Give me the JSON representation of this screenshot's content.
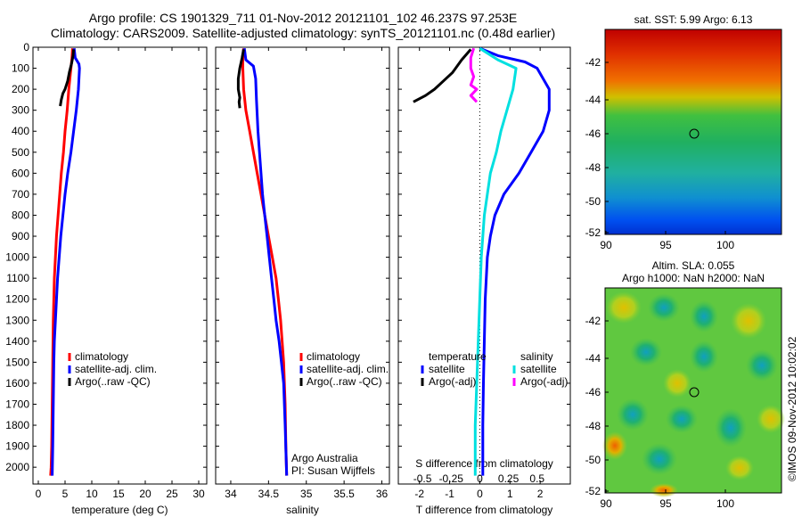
{
  "header": {
    "line1": "Argo profile: CS 1901329_711 01-Nov-2012 20121101_102 46.237S 97.253E",
    "line2": "Climatology: CARS2009. Satellite-adjusted climatology: synTS_20121101.nc (0.48d earlier)"
  },
  "colors": {
    "clim": "#ff0000",
    "sat": "#0000ff",
    "argo": "#000000",
    "sal_sat": "#00e0e0",
    "sal_argo": "#ff00ff"
  },
  "depth_ticks": [
    "0",
    "100",
    "200",
    "300",
    "400",
    "500",
    "600",
    "700",
    "800",
    "900",
    "1000",
    "1100",
    "1200",
    "1300",
    "1400",
    "1500",
    "1600",
    "1700",
    "1800",
    "1900",
    "2000"
  ],
  "chart_data": [
    {
      "type": "line",
      "xlabel": "temperature (deg C)",
      "xticks": [
        "0",
        "5",
        "10",
        "15",
        "20",
        "25",
        "30"
      ],
      "xlim": [
        -1,
        31.5
      ],
      "ylim": [
        2080,
        0
      ],
      "legend": [
        "climatology",
        "satellite-adj. clim.",
        "Argo(..raw -QC)"
      ],
      "series": [
        {
          "name": "climatology",
          "color": "#ff0000",
          "x": [
            6.4,
            6.3,
            6.1,
            5.7,
            5.4,
            5.0,
            4.7,
            4.3,
            4.0,
            3.7,
            3.4,
            3.2,
            3.0,
            2.9,
            2.8,
            2.7,
            2.6,
            2.5,
            2.4,
            2.3
          ],
          "y": [
            5,
            50,
            100,
            200,
            300,
            400,
            500,
            600,
            700,
            800,
            900,
            1000,
            1100,
            1200,
            1300,
            1500,
            1700,
            1900,
            2000,
            2040
          ]
        },
        {
          "name": "satellite-adj. clim.",
          "color": "#0000ff",
          "x": [
            6.7,
            6.9,
            7.6,
            7.7,
            7.5,
            7.1,
            6.6,
            6.1,
            5.5,
            5.0,
            4.6,
            4.2,
            3.9,
            3.6,
            3.4,
            3.2,
            3.0,
            2.9,
            2.8,
            2.7,
            2.6
          ],
          "y": [
            5,
            50,
            80,
            100,
            200,
            300,
            400,
            500,
            600,
            700,
            800,
            900,
            1000,
            1100,
            1200,
            1300,
            1400,
            1500,
            1700,
            1900,
            2040
          ]
        },
        {
          "name": "Argo(..raw -QC)",
          "color": "#000000",
          "x": [
            6.6,
            6.5,
            6.2,
            5.8,
            5.5,
            5.0,
            4.6,
            4.3,
            4.1
          ],
          "y": [
            10,
            40,
            80,
            120,
            160,
            200,
            220,
            250,
            280
          ]
        }
      ]
    },
    {
      "type": "line",
      "xlabel": "salinity",
      "xticks": [
        "34",
        "34.5",
        "35",
        "35.5",
        "36"
      ],
      "xlim": [
        33.8,
        36.1
      ],
      "ylim": [
        2080,
        0
      ],
      "legend": [
        "climatology",
        "satellite-adj. clim.",
        "Argo(..raw -QC)"
      ],
      "series": [
        {
          "name": "climatology",
          "color": "#ff0000",
          "x": [
            34.17,
            34.16,
            34.16,
            34.17,
            34.2,
            34.25,
            34.3,
            34.35,
            34.4,
            34.45,
            34.5,
            34.55,
            34.6,
            34.63,
            34.66,
            34.68,
            34.7,
            34.72,
            34.73,
            34.74
          ],
          "y": [
            5,
            50,
            100,
            200,
            300,
            400,
            500,
            600,
            700,
            800,
            900,
            1000,
            1100,
            1200,
            1300,
            1400,
            1500,
            1700,
            1900,
            2040
          ]
        },
        {
          "name": "satellite-adj. clim.",
          "color": "#0000ff",
          "x": [
            34.18,
            34.2,
            34.3,
            34.33,
            34.34,
            34.36,
            34.38,
            34.4,
            34.42,
            34.45,
            34.48,
            34.51,
            34.54,
            34.57,
            34.6,
            34.64,
            34.67,
            34.7,
            34.72,
            34.74
          ],
          "y": [
            5,
            60,
            90,
            150,
            250,
            400,
            500,
            600,
            700,
            800,
            900,
            1000,
            1100,
            1200,
            1300,
            1400,
            1500,
            1600,
            1800,
            2040
          ]
        },
        {
          "name": "Argo(..raw -QC)",
          "color": "#000000",
          "x": [
            34.17,
            34.15,
            34.12,
            34.1,
            34.1,
            34.12,
            34.11,
            34.12
          ],
          "y": [
            10,
            50,
            100,
            150,
            200,
            240,
            260,
            290
          ]
        }
      ]
    },
    {
      "type": "line",
      "xlabel": "T difference from climatology",
      "xlabel2": "S difference from climatology",
      "xticks": [
        "-2",
        "-1",
        "0",
        "1",
        "2"
      ],
      "xticks_s": [
        "-0.5",
        "-0.25",
        "0",
        "0.25",
        "0.5"
      ],
      "xlim": [
        -2.7,
        3.0
      ],
      "ylim": [
        2080,
        0
      ],
      "legend_title_t": "temperature",
      "legend_title_s": "salinity",
      "legend": [
        "satellite",
        "Argo(-adj)",
        "satellite",
        "Argo(-adj)"
      ],
      "series": [
        {
          "name": "satellite",
          "group": "temperature",
          "color": "#0000ff",
          "x": [
            0.0,
            0.6,
            1.5,
            1.9,
            2.3,
            2.3,
            2.1,
            1.7,
            1.3,
            0.8,
            0.5,
            0.35,
            0.25,
            0.18,
            0.15,
            0.12,
            0.1,
            0.1
          ],
          "y": [
            5,
            40,
            70,
            100,
            200,
            300,
            400,
            500,
            600,
            700,
            800,
            900,
            1000,
            1200,
            1400,
            1600,
            1800,
            2040
          ]
        },
        {
          "name": "Argo(-adj)",
          "group": "temperature",
          "color": "#000000",
          "x": [
            -0.3,
            -0.6,
            -0.9,
            -1.2,
            -1.5,
            -1.8,
            -2.2
          ],
          "y": [
            10,
            60,
            120,
            160,
            200,
            230,
            260
          ]
        },
        {
          "name": "satellite",
          "group": "salinity",
          "color": "#00e0e0",
          "x": [
            0.0,
            0.6,
            1.2,
            1.1,
            0.9,
            0.7,
            0.55,
            0.35,
            0.25,
            0.15,
            0.05,
            0.0,
            -0.05,
            -0.1,
            -0.15,
            -0.15
          ],
          "y": [
            5,
            60,
            100,
            200,
            300,
            400,
            500,
            600,
            700,
            800,
            1000,
            1200,
            1400,
            1600,
            1800,
            2040
          ]
        },
        {
          "name": "Argo(-adj)",
          "group": "salinity",
          "color": "#ff00ff",
          "x": [
            -0.2,
            -0.3,
            -0.3,
            -0.2,
            -0.3,
            -0.1,
            -0.3,
            -0.1
          ],
          "y": [
            5,
            50,
            100,
            140,
            180,
            200,
            230,
            260
          ]
        }
      ]
    }
  ],
  "map1": {
    "title": "sat. SST: 5.99 Argo: 6.13",
    "yticks": [
      "-42",
      "-44",
      "-46",
      "-48",
      "-50",
      "-52"
    ],
    "xticks": [
      "90",
      "95",
      "100"
    ]
  },
  "map2": {
    "title1": "Altim. SLA: 0.055",
    "title2": "Argo h1000: NaN h2000: NaN",
    "yticks": [
      "-42",
      "-44",
      "-46",
      "-48",
      "-50",
      "-52"
    ],
    "xticks": [
      "90",
      "95",
      "100"
    ]
  },
  "annot": {
    "argo_aus": "Argo Australia",
    "pi": "PI: Susan Wijffels",
    "credit": "©IMOS 09-Nov-2012 10:02:02"
  }
}
